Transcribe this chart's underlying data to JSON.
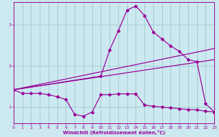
{
  "xlabel": "Windchill (Refroidissement éolien,°C)",
  "bg_color": "#cce8f0",
  "line_color": "#990099",
  "grid_color": "#99cccc",
  "x_ticks": [
    0,
    1,
    2,
    3,
    4,
    5,
    6,
    7,
    8,
    9,
    10,
    11,
    12,
    13,
    14,
    15,
    16,
    17,
    18,
    19,
    20,
    21,
    22,
    23
  ],
  "y_ticks": [
    1,
    2,
    3
  ],
  "xlim": [
    0,
    23
  ],
  "ylim": [
    0.6,
    3.55
  ],
  "curve1_x": [
    0,
    1,
    2,
    3,
    4,
    5,
    6,
    7,
    8,
    9,
    10,
    11,
    12,
    13,
    14,
    15,
    16,
    17,
    18,
    19,
    20,
    21,
    22,
    23
  ],
  "curve1_y": [
    1.42,
    1.33,
    1.33,
    1.33,
    1.3,
    1.25,
    1.18,
    0.82,
    0.78,
    0.88,
    1.3,
    1.3,
    1.32,
    1.32,
    1.32,
    1.05,
    1.02,
    1.0,
    0.98,
    0.96,
    0.94,
    0.93,
    0.9,
    0.88
  ],
  "curve2_x": [
    0,
    10,
    11,
    12,
    13,
    14,
    15,
    16,
    17,
    18,
    19,
    20,
    21,
    22,
    23
  ],
  "curve2_y": [
    1.42,
    1.75,
    2.38,
    2.85,
    3.35,
    3.45,
    3.22,
    2.82,
    2.65,
    2.48,
    2.35,
    2.15,
    2.1,
    1.08,
    0.88
  ],
  "line3_x": [
    0,
    23
  ],
  "line3_y": [
    1.42,
    2.42
  ],
  "line4_x": [
    0,
    23
  ],
  "line4_y": [
    1.42,
    2.15
  ]
}
